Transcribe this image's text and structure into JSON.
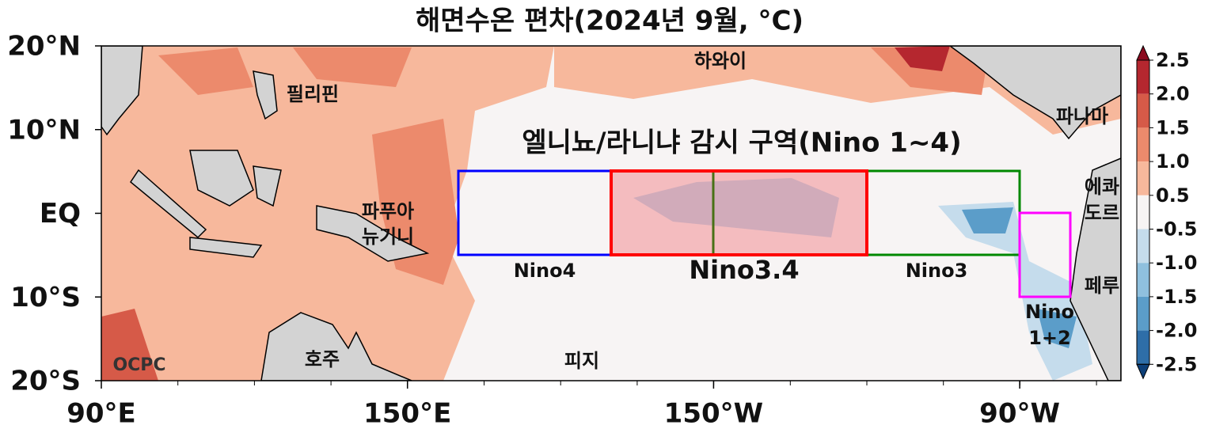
{
  "title": "해면수온 편차(2024년 9월, °C)",
  "lat_ticks": [
    "20°N",
    "10°N",
    "EQ",
    "10°S",
    "20°S"
  ],
  "lon_ticks": [
    "90°E",
    "150°E",
    "150°W",
    "90°W"
  ],
  "places": {
    "philippines": "필리핀",
    "hawaii": "하와이",
    "panama": "파나마",
    "ecuador": [
      "에콰",
      "도르"
    ],
    "png": [
      "파푸아",
      "뉴기니"
    ],
    "peru": "페루",
    "australia": "호주",
    "fiji": "피지",
    "source": "OCPC"
  },
  "region_title": "엘니뇨/라니냐 감시 구역(Nino 1~4)",
  "regions": {
    "nino4": "Nino4",
    "nino34": "Nino3.4",
    "nino3": "Nino3",
    "nino12": [
      "Nino",
      "1+2"
    ]
  },
  "colorbar_labels": [
    "2.5",
    "2.0",
    "1.5",
    "1.0",
    "0.5",
    "-0.5",
    "-1.0",
    "-1.5",
    "-2.0",
    "-2.5"
  ]
}
